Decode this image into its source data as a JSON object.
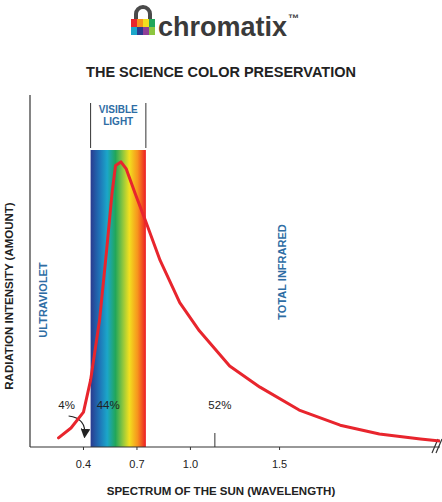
{
  "chart_data": {
    "type": "line",
    "logo": "chromatix",
    "logo_mark": "™",
    "title": "THE SCIENCE COLOR PRESERVATION",
    "xlabel": "SPECTRUM OF THE SUN (WAVELENGTH)",
    "ylabel": "RADIATION INTENSITY (AMOUNT)",
    "x": [
      0.26,
      0.33,
      0.4,
      0.44,
      0.49,
      0.53,
      0.56,
      0.58,
      0.61,
      0.64,
      0.69,
      0.75,
      0.83,
      0.94,
      1.05,
      1.22,
      1.39,
      1.61,
      1.84,
      2.06,
      2.29,
      2.4
    ],
    "values": [
      2.6,
      5.4,
      9.9,
      19,
      36,
      56,
      72,
      80,
      81,
      79,
      72,
      64,
      53,
      41,
      33,
      23,
      17,
      10.5,
      6.2,
      3.7,
      2.3,
      1.7
    ],
    "color": "#e8252d",
    "xlim": [
      0.1,
      2.4
    ],
    "xticks": [
      0.4,
      0.7,
      {
        "value": 1,
        "label": "1.0"
      },
      1.5
    ],
    "ylim": [
      0,
      100
    ],
    "yticks": [],
    "tick_labels": "x",
    "band": {
      "label": "VISIBLE LIGHT",
      "x": [
        0.44,
        0.75
      ]
    },
    "ultraviolet_label": "ULTRAVIOLET",
    "infrared_label": "TOTAL INFRARED",
    "shares": {
      "values": [
        4,
        44,
        52
      ],
      "value_labels": [
        "4%",
        "44%",
        "52%"
      ]
    }
  }
}
